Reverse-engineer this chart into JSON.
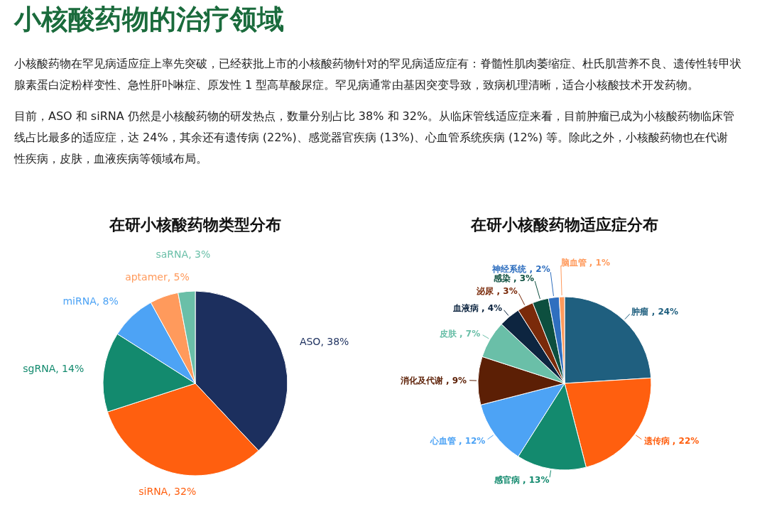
{
  "chart_data": [
    {
      "type": "other",
      "title": "小核酸药物的治疗领域",
      "annotations": [
        "小核酸药物在罕见病适应症上率先突破，已经获批上市的小核酸药物针对的罕见病适应症有：脊髓性肌肉萎缩症、杜氏肌营养不良、遗传性转甲状腺素蛋白淀粉样变性、急性肝卟啉症、原发性 1 型高草酸尿症。罕见病通常由基因突变导致，致病机理清晰，适合小核酸技术开发药物。",
        "目前，ASO 和 siRNA 仍然是小核酸药物的研发热点，数量分别占比 38% 和 32%。从临床管线适应症来看，目前肿瘤已成为小核酸药物临床管线占比最多的适应症，达 24%，其余还有遗传病 (22%)、感觉器官疾病 (13%)、心血管系统疾病 (12%) 等。除此之外，小核酸药物也在代谢性疾病，皮肤，血液疾病等领域布局。"
      ]
    },
    {
      "type": "pie",
      "title": "在研小核酸药物类型分布",
      "categories": [
        "ASO",
        "siRNA",
        "sgRNA",
        "miRNA",
        "aptamer",
        "saRNA"
      ],
      "values": [
        38,
        32,
        14,
        8,
        5,
        3
      ],
      "colors": [
        "#1c2f5e",
        "#ff5f0f",
        "#138a6e",
        "#4da3f5",
        "#ff9a5c",
        "#6abfa8"
      ],
      "value_labels": [
        "38%",
        "32%",
        "14%",
        "8%",
        "5%",
        "3%"
      ]
    },
    {
      "type": "pie",
      "title": "在研小核酸药物适应症分布",
      "categories": [
        "肿瘤",
        "遗传病",
        "感官病",
        "心血管",
        "消化及代谢",
        "皮肤",
        "血液病",
        "泌尿",
        "感染",
        "神经系统",
        "脑血管"
      ],
      "values": [
        24,
        22,
        13,
        12,
        9,
        7,
        4,
        3,
        3,
        2,
        1
      ],
      "colors": [
        "#1f5f7f",
        "#ff5f0f",
        "#138a6e",
        "#4da3f5",
        "#5c1f05",
        "#6abfa8",
        "#0d2540",
        "#7a2a0a",
        "#0d4f3f",
        "#2f6fbf",
        "#ff9a5c"
      ],
      "value_labels": [
        "24%",
        "22%",
        "13%",
        "12%",
        "9%",
        "7%",
        "4%",
        "3%",
        "3%",
        "2%",
        "1%"
      ]
    }
  ]
}
